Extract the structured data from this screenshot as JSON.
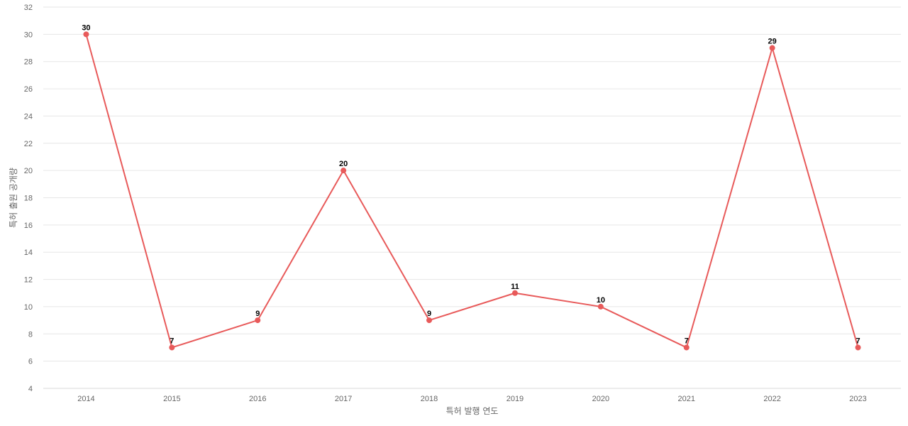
{
  "chart_data": {
    "type": "line",
    "title": "",
    "xlabel": "특허 발행 연도",
    "ylabel": "특허 출원 공개량",
    "categories": [
      "2014",
      "2015",
      "2016",
      "2017",
      "2018",
      "2019",
      "2020",
      "2021",
      "2022",
      "2023"
    ],
    "series": [
      {
        "values": [
          30,
          7,
          9,
          20,
          9,
          11,
          10,
          7,
          29,
          7
        ],
        "color": "#e85a5a"
      }
    ],
    "ylim": [
      4,
      32
    ],
    "yticks": [
      4,
      6,
      8,
      10,
      12,
      14,
      16,
      18,
      20,
      22,
      24,
      26,
      28,
      30,
      32
    ],
    "grid": true,
    "legend": "none",
    "data_labels": true
  }
}
